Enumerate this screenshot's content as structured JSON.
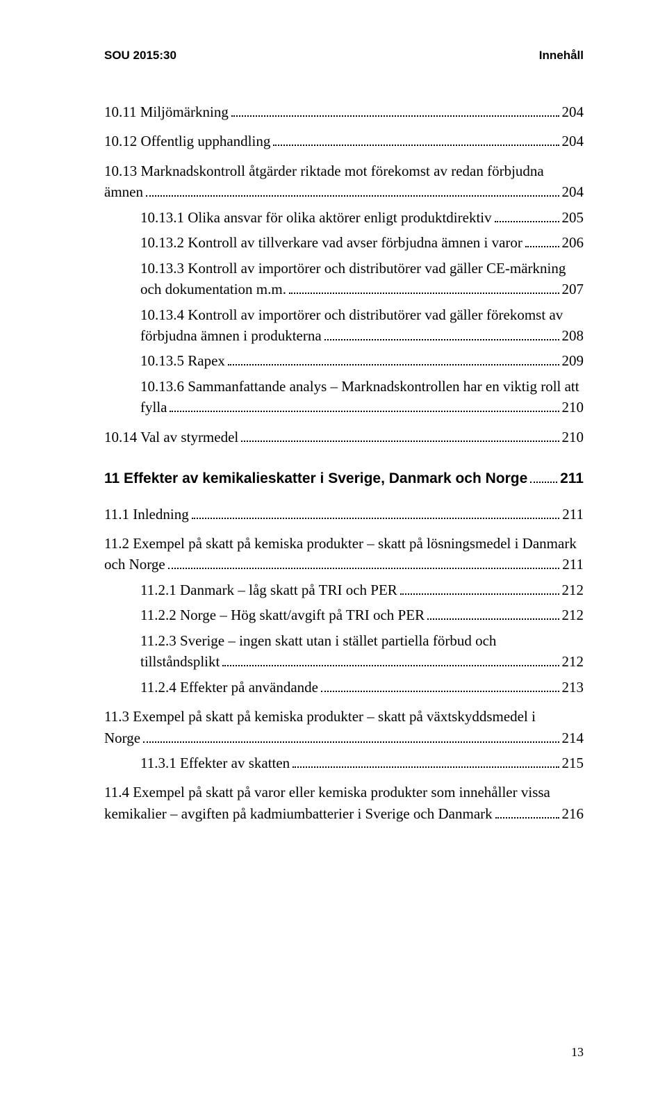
{
  "header": {
    "left": "SOU 2015:30",
    "right": "Innehåll"
  },
  "footer": {
    "page": "13"
  },
  "toc": [
    {
      "num": "10.11",
      "text": "Miljömärkning",
      "page": "204",
      "level": 0,
      "bold": false,
      "gap": ""
    },
    {
      "num": "10.12",
      "text": "Offentlig upphandling",
      "page": "204",
      "level": 0,
      "bold": false,
      "gap": "gap-s"
    },
    {
      "num": "10.13",
      "text": "Marknadskontroll åtgärder riktade mot förekomst av redan förbjudna ämnen",
      "page": "204",
      "level": 0,
      "bold": false,
      "gap": "gap-s"
    },
    {
      "num": "10.13.1",
      "text": "Olika ansvar för olika aktörer enligt produktdirektiv",
      "page": "205",
      "level": 1,
      "bold": false,
      "gap": ""
    },
    {
      "num": "10.13.2",
      "text": "Kontroll av tillverkare vad avser förbjudna ämnen i varor",
      "page": "206",
      "level": 1,
      "bold": false,
      "gap": ""
    },
    {
      "num": "10.13.3",
      "text": "Kontroll av importörer och distributörer vad gäller CE-märkning och dokumentation m.m.",
      "page": "207",
      "level": 1,
      "bold": false,
      "gap": ""
    },
    {
      "num": "10.13.4",
      "text": "Kontroll av importörer och distributörer vad gäller förekomst av förbjudna ämnen i produkterna",
      "page": "208",
      "level": 1,
      "bold": false,
      "gap": ""
    },
    {
      "num": "10.13.5",
      "text": "Rapex",
      "page": "209",
      "level": 1,
      "bold": false,
      "gap": ""
    },
    {
      "num": "10.13.6",
      "text": "Sammanfattande analys – Marknadskontrollen har en viktig roll att fylla",
      "page": "210",
      "level": 1,
      "bold": false,
      "gap": ""
    },
    {
      "num": "10.14",
      "text": "Val av styrmedel",
      "page": "210",
      "level": 0,
      "bold": false,
      "gap": "gap-s"
    },
    {
      "num": "11",
      "text": "Effekter av kemikalieskatter i Sverige, Danmark och Norge",
      "page": "211",
      "level": 0,
      "bold": true,
      "gap": "gap-l"
    },
    {
      "num": "11.1",
      "text": "Inledning",
      "page": "211",
      "level": 0,
      "bold": false,
      "gap": "gap-m"
    },
    {
      "num": "11.2",
      "text": "Exempel på skatt på kemiska produkter – skatt på lösningsmedel i Danmark och Norge",
      "page": "211",
      "level": 0,
      "bold": false,
      "gap": "gap-s"
    },
    {
      "num": "11.2.1",
      "text": "Danmark – låg skatt på TRI och PER",
      "page": "212",
      "level": 1,
      "bold": false,
      "gap": ""
    },
    {
      "num": "11.2.2",
      "text": "Norge – Hög skatt/avgift på TRI och PER",
      "page": "212",
      "level": 1,
      "bold": false,
      "gap": ""
    },
    {
      "num": "11.2.3",
      "text": "Sverige – ingen skatt utan i stället partiella förbud och tillståndsplikt",
      "page": "212",
      "level": 1,
      "bold": false,
      "gap": ""
    },
    {
      "num": "11.2.4",
      "text": "Effekter på användande",
      "page": "213",
      "level": 1,
      "bold": false,
      "gap": ""
    },
    {
      "num": "11.3",
      "text": "Exempel på skatt på kemiska produkter – skatt på växtskyddsmedel i Norge",
      "page": "214",
      "level": 0,
      "bold": false,
      "gap": "gap-s"
    },
    {
      "num": "11.3.1",
      "text": "Effekter av skatten",
      "page": "215",
      "level": 1,
      "bold": false,
      "gap": ""
    },
    {
      "num": "11.4",
      "text": "Exempel på skatt på varor eller kemiska produkter som innehåller vissa kemikalier – avgiften på kadmium­batterier i Sverige och Danmark",
      "page": "216",
      "level": 0,
      "bold": false,
      "gap": "gap-s"
    }
  ]
}
